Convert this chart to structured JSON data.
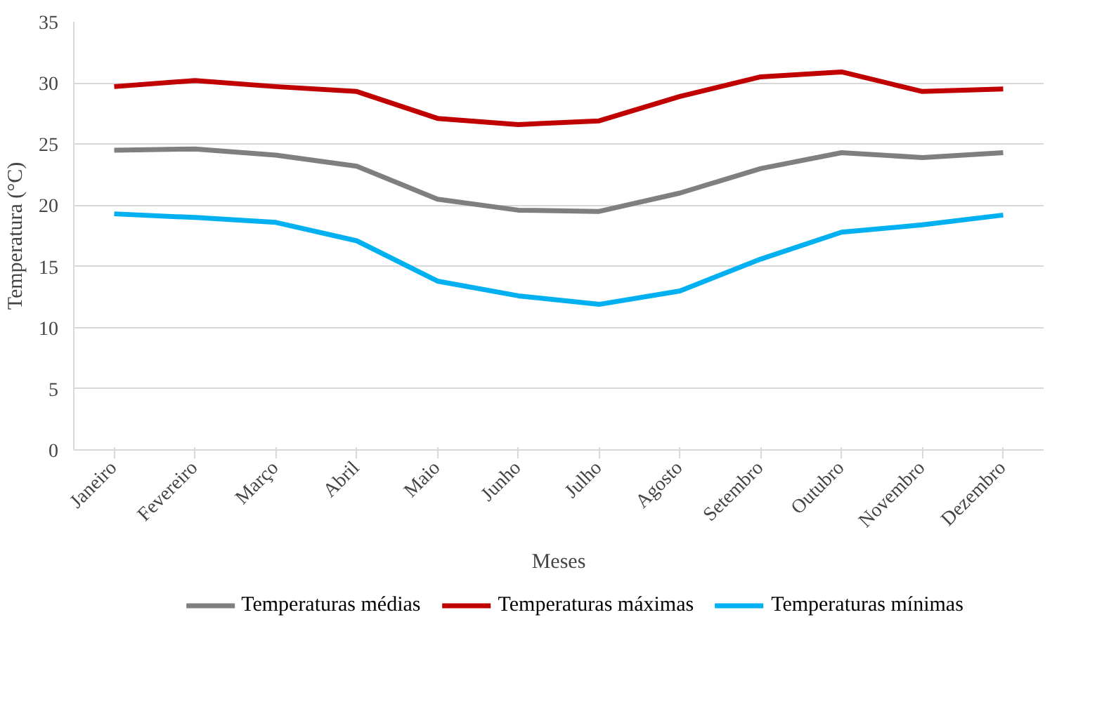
{
  "chart_data": {
    "type": "line",
    "xlabel": "Meses",
    "ylabel": "Temperatura (°C)",
    "categories": [
      "Janeiro",
      "Fevereiro",
      "Março",
      "Abril",
      "Maio",
      "Junho",
      "Julho",
      "Agosto",
      "Setembro",
      "Outubro",
      "Novembro",
      "Dezembro"
    ],
    "series": [
      {
        "name": "Temperaturas médias",
        "color": "#7f7f7f",
        "values": [
          24.5,
          24.6,
          24.1,
          23.2,
          20.5,
          19.6,
          19.5,
          21.0,
          23.0,
          24.3,
          23.9,
          24.3
        ]
      },
      {
        "name": "Temperaturas máximas",
        "color": "#c00000",
        "values": [
          29.7,
          30.2,
          29.7,
          29.3,
          27.1,
          26.6,
          26.9,
          28.9,
          30.5,
          30.9,
          29.3,
          29.5
        ]
      },
      {
        "name": "Temperaturas mínimas",
        "color": "#00b0f0",
        "values": [
          19.3,
          19.0,
          18.6,
          17.1,
          13.8,
          12.6,
          11.9,
          13.0,
          15.6,
          17.8,
          18.4,
          19.2
        ]
      }
    ],
    "ylim": [
      0,
      35
    ],
    "yticks": [
      0,
      5,
      10,
      15,
      20,
      25,
      30,
      35
    ],
    "grid": "y",
    "legend": "bottom",
    "marker": "none",
    "line_style": "solid"
  }
}
